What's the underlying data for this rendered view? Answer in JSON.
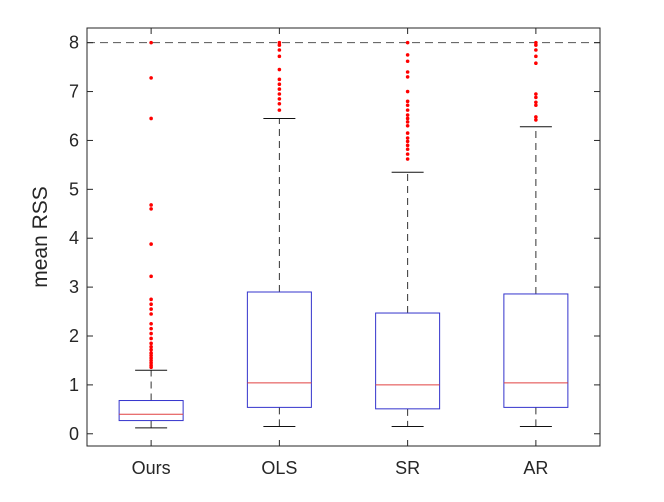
{
  "chart_data": {
    "type": "box",
    "ylabel": "mean RSS",
    "xlabel": "",
    "title": "",
    "ylim": [
      -0.25,
      8.3
    ],
    "yticks": [
      0,
      1,
      2,
      3,
      4,
      5,
      6,
      7,
      8
    ],
    "reference_line": {
      "y": 8,
      "style": "dashed"
    },
    "colors": {
      "box": "#3333cc",
      "median": "#e04040",
      "outlier": "#ff0000",
      "whisker": "#333333",
      "axis": "#262626"
    },
    "categories": [
      "Ours",
      "OLS",
      "SR",
      "AR"
    ],
    "boxes": [
      {
        "label": "Ours",
        "whisker_low": 0.12,
        "q1": 0.27,
        "median": 0.4,
        "q3": 0.68,
        "whisker_high": 1.3,
        "outliers": [
          8.0,
          7.28,
          6.45,
          4.68,
          4.6,
          3.88,
          3.22,
          2.75,
          2.65,
          2.55,
          2.45,
          2.25,
          2.15,
          2.05,
          1.95,
          1.85,
          1.78,
          1.72,
          1.65,
          1.6,
          1.55,
          1.5,
          1.45,
          1.4,
          1.36
        ]
      },
      {
        "label": "OLS",
        "whisker_low": 0.15,
        "q1": 0.54,
        "median": 1.04,
        "q3": 2.9,
        "whisker_high": 6.45,
        "outliers": [
          8.0,
          7.95,
          7.85,
          7.72,
          7.45,
          7.25,
          7.15,
          7.05,
          6.95,
          6.85,
          6.75,
          6.62
        ]
      },
      {
        "label": "SR",
        "whisker_low": 0.15,
        "q1": 0.51,
        "median": 1.0,
        "q3": 2.47,
        "whisker_high": 5.35,
        "outliers": [
          8.0,
          7.75,
          7.62,
          7.4,
          7.3,
          7.0,
          6.8,
          6.72,
          6.62,
          6.52,
          6.45,
          6.38,
          6.3,
          6.15,
          6.05,
          5.98,
          5.9,
          5.82,
          5.72,
          5.62
        ]
      },
      {
        "label": "AR",
        "whisker_low": 0.15,
        "q1": 0.54,
        "median": 1.04,
        "q3": 2.86,
        "whisker_high": 6.28,
        "outliers": [
          8.0,
          7.95,
          7.85,
          7.72,
          7.58,
          6.95,
          6.88,
          6.78,
          6.72,
          6.48,
          6.42
        ]
      }
    ]
  }
}
